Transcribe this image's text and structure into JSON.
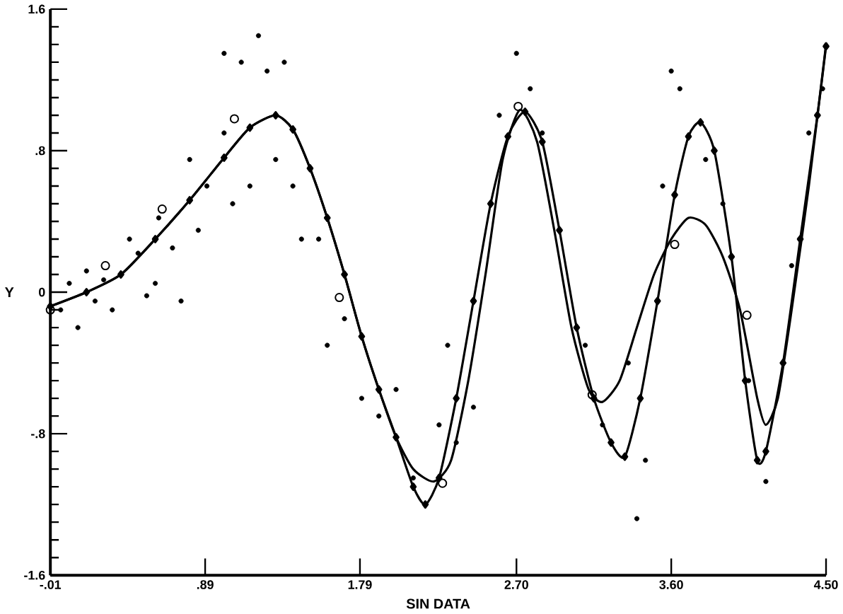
{
  "chart_data": {
    "type": "scatter",
    "xlabel": "SIN DATA",
    "ylabel": "Y",
    "xlim": [
      -0.01,
      4.5
    ],
    "ylim": [
      -1.6,
      1.6
    ],
    "xticks": [
      {
        "value": -0.01,
        "label": "-.01"
      },
      {
        "value": 0.89,
        "label": ".89"
      },
      {
        "value": 1.79,
        "label": "1.79"
      },
      {
        "value": 2.7,
        "label": "2.70"
      },
      {
        "value": 3.6,
        "label": "3.60"
      },
      {
        "value": 4.5,
        "label": "4.50"
      }
    ],
    "yticks": [
      {
        "value": -1.6,
        "label": "-1.6"
      },
      {
        "value": -0.8,
        "label": "-.8"
      },
      0,
      {
        "value": 0.8,
        "label": ".8"
      },
      {
        "value": 1.6,
        "label": "1.6"
      }
    ],
    "grid": false,
    "series": [
      {
        "marker": "circle",
        "color": "#000000",
        "x": [
          0.05,
          0.1,
          0.15,
          0.2,
          0.25,
          0.3,
          0.35,
          0.4,
          0.45,
          0.5,
          0.55,
          0.6,
          0.62,
          0.7,
          0.75,
          0.8,
          0.85,
          0.9,
          1.0,
          1.0,
          1.05,
          1.1,
          1.15,
          1.2,
          1.25,
          1.3,
          1.35,
          1.4,
          1.45,
          1.55,
          1.6,
          1.7,
          1.8,
          1.9,
          2.0,
          2.1,
          2.25,
          2.35,
          2.45,
          2.6,
          2.7,
          2.78,
          2.85,
          2.3,
          3.1,
          3.2,
          3.35,
          3.4,
          3.45,
          3.6,
          3.65,
          3.55,
          3.8,
          3.9,
          4.05,
          4.15,
          4.3,
          4.4,
          4.48
        ],
        "values": [
          -0.1,
          0.05,
          -0.2,
          0.12,
          -0.05,
          0.07,
          -0.1,
          0.1,
          0.3,
          0.22,
          -0.02,
          0.05,
          0.42,
          0.25,
          -0.05,
          0.75,
          0.35,
          0.6,
          0.9,
          1.35,
          0.5,
          1.3,
          0.6,
          1.45,
          1.25,
          0.75,
          1.3,
          0.6,
          0.3,
          0.3,
          -0.3,
          -0.15,
          -0.6,
          -0.7,
          -0.55,
          -1.05,
          -0.75,
          -0.85,
          -0.65,
          1.0,
          1.35,
          1.15,
          0.9,
          -0.3,
          -0.3,
          -0.75,
          -0.4,
          -1.28,
          -0.95,
          1.25,
          1.15,
          0.6,
          0.75,
          0.5,
          -0.5,
          -1.07,
          0.15,
          0.9,
          1.15
        ]
      },
      {
        "type": "line",
        "marker": "none",
        "line_style": "solid",
        "color": "#000000",
        "x": [
          -0.01,
          0.2,
          0.4,
          0.6,
          0.8,
          1.0,
          1.15,
          1.3,
          1.4,
          1.5,
          1.6,
          1.7,
          1.8,
          1.9,
          2.0,
          2.1,
          2.22,
          2.32,
          2.42,
          2.52,
          2.62,
          2.72,
          2.82,
          2.92,
          3.02,
          3.12,
          3.2,
          3.3,
          3.4,
          3.5,
          3.6,
          3.7,
          3.8,
          3.9,
          4.0,
          4.1,
          4.15,
          4.22,
          4.3,
          4.4,
          4.5
        ],
        "values": [
          -0.08,
          0.0,
          0.1,
          0.3,
          0.52,
          0.76,
          0.93,
          1.0,
          0.92,
          0.7,
          0.42,
          0.1,
          -0.25,
          -0.55,
          -0.82,
          -1.0,
          -1.07,
          -0.95,
          -0.5,
          0.1,
          0.75,
          1.03,
          0.85,
          0.35,
          -0.2,
          -0.55,
          -0.62,
          -0.5,
          -0.2,
          0.1,
          0.3,
          0.42,
          0.38,
          0.2,
          -0.1,
          -0.6,
          -0.75,
          -0.6,
          -0.1,
          0.6,
          1.4
        ]
      },
      {
        "type": "line",
        "marker": "diamond",
        "line_style": "solid",
        "color": "#000000",
        "x": [
          -0.01,
          0.2,
          0.4,
          0.6,
          0.8,
          1.0,
          1.15,
          1.3,
          1.4,
          1.5,
          1.6,
          1.7,
          1.8,
          1.9,
          2.0,
          2.1,
          2.17,
          2.25,
          2.35,
          2.45,
          2.55,
          2.65,
          2.75,
          2.85,
          2.95,
          3.05,
          3.15,
          3.25,
          3.33,
          3.42,
          3.52,
          3.62,
          3.7,
          3.77,
          3.85,
          3.95,
          4.03,
          4.1,
          4.15,
          4.25,
          4.35,
          4.45,
          4.5
        ],
        "values": [
          -0.08,
          0.0,
          0.1,
          0.3,
          0.52,
          0.76,
          0.93,
          1.0,
          0.92,
          0.7,
          0.42,
          0.1,
          -0.25,
          -0.55,
          -0.82,
          -1.1,
          -1.2,
          -1.05,
          -0.6,
          -0.05,
          0.5,
          0.88,
          1.02,
          0.85,
          0.35,
          -0.2,
          -0.6,
          -0.85,
          -0.93,
          -0.6,
          -0.05,
          0.55,
          0.88,
          0.96,
          0.8,
          0.2,
          -0.5,
          -0.95,
          -0.9,
          -0.4,
          0.3,
          1.0,
          1.39
        ]
      },
      {
        "type": "scatter",
        "marker": "open circle",
        "color": "#000000",
        "x": [
          -0.01,
          0.31,
          0.64,
          1.06,
          1.67,
          2.27,
          2.71,
          3.14,
          3.62,
          4.04
        ],
        "values": [
          -0.1,
          0.15,
          0.47,
          0.98,
          -0.03,
          -1.08,
          1.05,
          -0.58,
          0.27,
          -0.13
        ]
      }
    ]
  }
}
